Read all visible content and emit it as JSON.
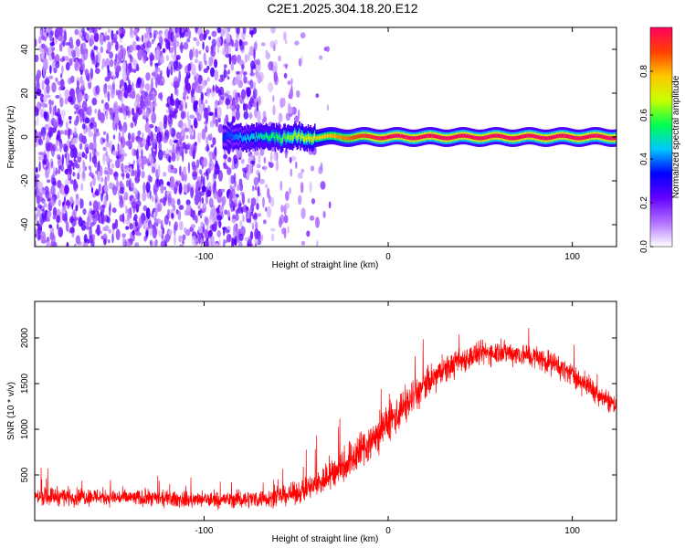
{
  "figure_title": "C2E1.2025.304.18.20.E12",
  "chart_data": [
    {
      "type": "heatmap",
      "title": "C2E1.2025.304.18.20.E12",
      "xlabel": "Height of straight line (km)",
      "ylabel": "Frequency (Hz)",
      "xlim": [
        -192,
        124
      ],
      "ylim": [
        -50,
        50
      ],
      "x_ticks": [
        -100,
        0,
        100
      ],
      "x_tick_labels": [
        "-100",
        "0",
        "100"
      ],
      "y_ticks": [
        -40,
        -20,
        0,
        20,
        40
      ],
      "y_tick_labels": [
        "-40",
        "-20",
        "0",
        "20",
        "40"
      ],
      "noise_region_x": [
        -192,
        -48
      ],
      "ridge": {
        "frequency_hz": 0,
        "start_height_km": -90,
        "end_height_km": 124,
        "peak_amplitude_from_height_km": 0
      },
      "colorbar": {
        "label": "Normalized spectral amplitude",
        "range": [
          0.0,
          1.0
        ],
        "ticks": [
          0.0,
          0.2,
          0.4,
          0.6,
          0.8
        ],
        "tick_labels": [
          "0.0",
          "0.2",
          "0.4",
          "0.6",
          "0.8"
        ],
        "colormap": [
          "#ffffff",
          "#b070ff",
          "#6400ff",
          "#0000ff",
          "#00c8ff",
          "#00ff50",
          "#c8ff00",
          "#ffc800",
          "#ff4000",
          "#ff0060"
        ]
      }
    },
    {
      "type": "line",
      "xlabel": "Height of straight line (km)",
      "ylabel": "SNR (10 * v/v)",
      "xlim": [
        -192,
        124
      ],
      "ylim": [
        0,
        2400
      ],
      "x_ticks": [
        -100,
        0,
        100
      ],
      "x_tick_labels": [
        "-100",
        "0",
        "100"
      ],
      "y_ticks": [
        500,
        1000,
        1500,
        2000
      ],
      "y_tick_labels": [
        "500",
        "1000",
        "1500",
        "2000"
      ],
      "series": [
        {
          "name": "SNR",
          "color": "#ff0000",
          "x": [
            -192,
            -180,
            -170,
            -160,
            -150,
            -140,
            -130,
            -120,
            -110,
            -100,
            -90,
            -80,
            -70,
            -60,
            -50,
            -40,
            -30,
            -20,
            -10,
            0,
            10,
            20,
            30,
            40,
            50,
            60,
            70,
            80,
            90,
            100,
            110,
            124
          ],
          "y": [
            260,
            270,
            260,
            265,
            255,
            250,
            240,
            235,
            230,
            225,
            230,
            235,
            240,
            260,
            300,
            380,
            520,
            680,
            860,
            1060,
            1280,
            1480,
            1640,
            1760,
            1830,
            1850,
            1830,
            1790,
            1720,
            1600,
            1450,
            1250
          ],
          "spread": [
            130,
            150,
            140,
            140,
            140,
            130,
            130,
            130,
            130,
            130,
            130,
            140,
            140,
            150,
            170,
            220,
            280,
            320,
            340,
            330,
            300,
            260,
            230,
            210,
            200,
            190,
            190,
            190,
            190,
            180,
            180,
            170
          ]
        }
      ]
    }
  ]
}
